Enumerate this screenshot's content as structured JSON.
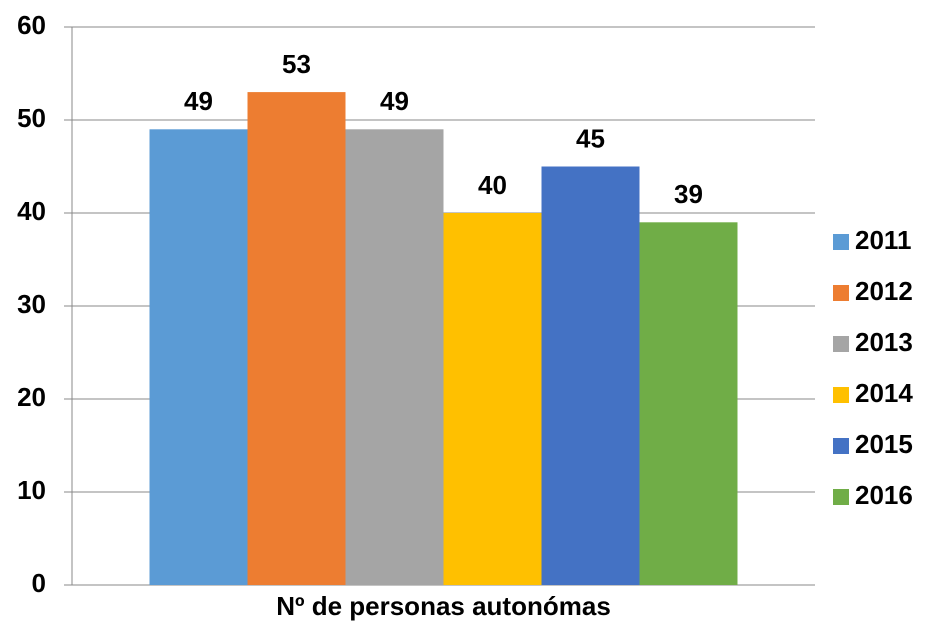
{
  "chart_data": {
    "type": "bar",
    "categories": [
      "Nº de personas autonómas"
    ],
    "series": [
      {
        "name": "2011",
        "color": "#5b9bd5",
        "values": [
          49
        ]
      },
      {
        "name": "2012",
        "color": "#ed7d31",
        "values": [
          53
        ]
      },
      {
        "name": "2013",
        "color": "#a5a5a5",
        "values": [
          49
        ]
      },
      {
        "name": "2014",
        "color": "#ffc000",
        "values": [
          40
        ]
      },
      {
        "name": "2015",
        "color": "#4472c4",
        "values": [
          45
        ]
      },
      {
        "name": "2016",
        "color": "#70ad47",
        "values": [
          39
        ]
      }
    ],
    "ylim": [
      0,
      60
    ],
    "yticks": [
      0,
      10,
      20,
      30,
      40,
      50,
      60
    ],
    "grid": true,
    "legend": "right"
  }
}
